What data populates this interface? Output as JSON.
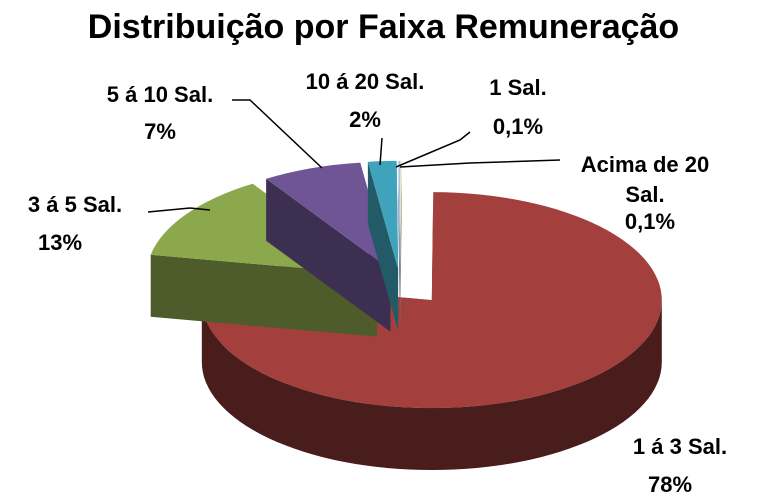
{
  "chart_data": {
    "type": "pie3d",
    "title": "Distribuição por Faixa Remuneração",
    "categories": [
      "Acima de 20 Sal.",
      "1 á 3 Sal.",
      "3 á 5 Sal.",
      "5 á 10 Sal.",
      "10 á 20 Sal.",
      "1 Sal."
    ],
    "values": [
      0.1,
      78,
      13,
      7,
      2,
      0.1
    ],
    "value_labels": [
      "0,1%",
      "78%",
      "13%",
      "7%",
      "2%",
      "0,1%"
    ],
    "colors": [
      "#e6dcc8",
      "#a3403e",
      "#8ca84c",
      "#6f5595",
      "#3fa3bb",
      "#9dbfe0"
    ]
  }
}
